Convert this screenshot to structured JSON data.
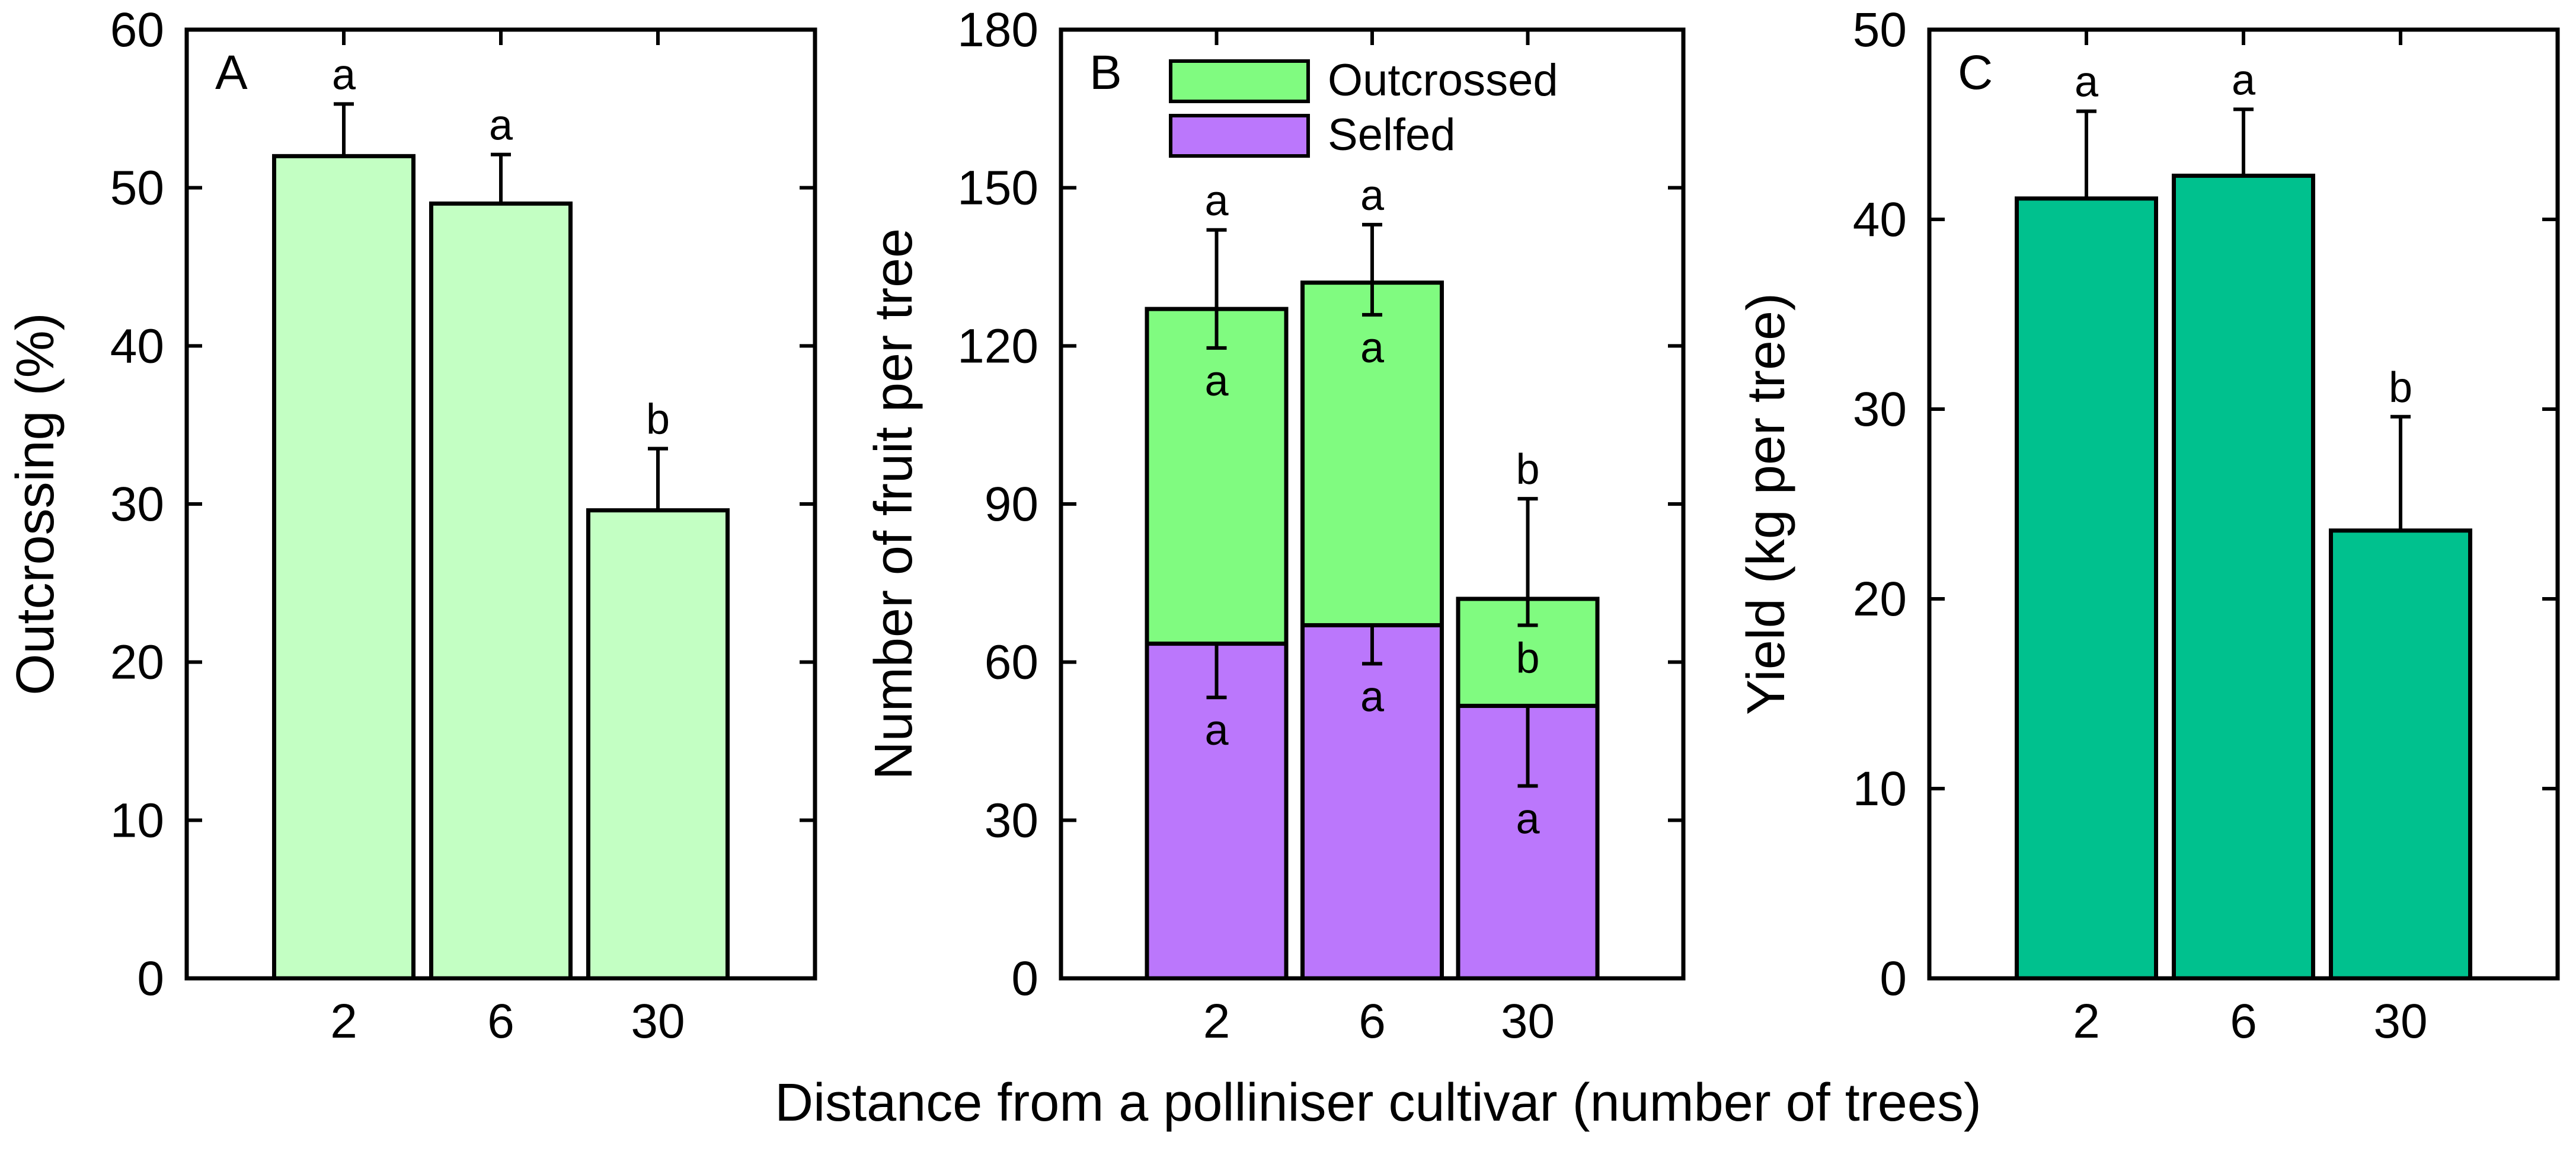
{
  "xlabel": "Distance from a polliniser cultivar (number of trees)",
  "chart_data": [
    {
      "type": "bar",
      "panel": "A",
      "ylabel": "Outcrossing (%)",
      "categories": [
        "2",
        "6",
        "30"
      ],
      "ylim": [
        0,
        60
      ],
      "yticks": [
        0,
        10,
        20,
        30,
        40,
        50,
        60
      ],
      "color": "#c3ffc3",
      "values": [
        52,
        49,
        29.6
      ],
      "errors": [
        3.3,
        3.1,
        3.9
      ],
      "letters": [
        "a",
        "a",
        "b"
      ]
    },
    {
      "type": "stacked-bar",
      "panel": "B",
      "ylabel": "Number of fruit per tree",
      "categories": [
        "2",
        "6",
        "30"
      ],
      "ylim": [
        0,
        180
      ],
      "yticks": [
        0,
        30,
        60,
        90,
        120,
        150,
        180
      ],
      "legend": [
        "Outcrossed",
        "Selfed"
      ],
      "series": [
        {
          "name": "Selfed",
          "color": "#bb77fc",
          "values": [
            63.5,
            67,
            51.7
          ],
          "errors": [
            10.2,
            7.3,
            15.2
          ],
          "letters": [
            "a",
            "a",
            "a"
          ]
        },
        {
          "name": "Outcrossed",
          "color": "#80fb80",
          "values": [
            63.5,
            65,
            20.3
          ],
          "errors": [
            15,
            11,
            19
          ],
          "errors_down": [
            7.4,
            6.1,
            5
          ],
          "letters": [
            "a",
            "a",
            "b"
          ],
          "total_letters": [
            "a",
            "a",
            "b"
          ]
        }
      ]
    },
    {
      "type": "bar",
      "panel": "C",
      "ylabel": "Yield (kg per tree)",
      "categories": [
        "2",
        "6",
        "30"
      ],
      "ylim": [
        0,
        50
      ],
      "yticks": [
        0,
        10,
        20,
        30,
        40,
        50
      ],
      "color": "#00c18e",
      "values": [
        41.1,
        42.3,
        23.6
      ],
      "errors": [
        4.6,
        3.5,
        6
      ],
      "letters": [
        "a",
        "a",
        "b"
      ]
    }
  ]
}
